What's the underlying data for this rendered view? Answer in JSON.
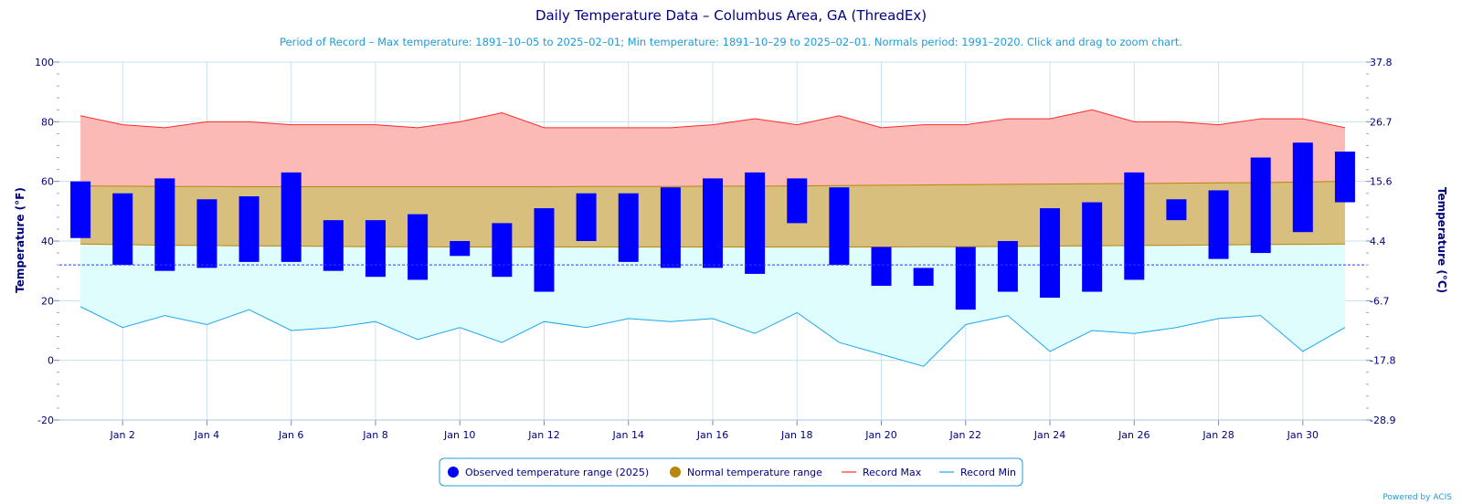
{
  "chart_data": {
    "type": "bar",
    "title": "Daily Temperature Data – Columbus Area, GA (ThreadEx)",
    "subtitle": "Period of Record – Max temperature: 1891–10–05 to 2025–02–01; Min temperature: 1891–10–29 to 2025–02–01. Normals period: 1991–2020. Click and drag to zoom chart.",
    "ylabel": "Temperature (°F)",
    "y2label": "Temperature (°C)",
    "ylim": [
      -20,
      100
    ],
    "y_ticks": [
      -20,
      0,
      20,
      40,
      60,
      80,
      100
    ],
    "y2_ticks": [
      "-28.9",
      "-17.8",
      "-6.7",
      "4.4",
      "15.6",
      "26.7",
      "37.8"
    ],
    "x_tick_labels": [
      "Jan 2",
      "Jan 4",
      "Jan 6",
      "Jan 8",
      "Jan 10",
      "Jan 12",
      "Jan 14",
      "Jan 16",
      "Jan 18",
      "Jan 20",
      "Jan 22",
      "Jan 24",
      "Jan 26",
      "Jan 28",
      "Jan 30"
    ],
    "x_tick_days": [
      2,
      4,
      6,
      8,
      10,
      12,
      14,
      16,
      18,
      20,
      22,
      24,
      26,
      28,
      30
    ],
    "days": [
      1,
      2,
      3,
      4,
      5,
      6,
      7,
      8,
      9,
      10,
      11,
      12,
      13,
      14,
      15,
      16,
      17,
      18,
      19,
      20,
      21,
      22,
      23,
      24,
      25,
      26,
      27,
      28,
      29,
      30,
      31
    ],
    "freezing_line": 32,
    "legend_position": "bottom-center",
    "series": [
      {
        "name": "Observed temperature range (2025)",
        "color": "#0000ff",
        "low": [
          41,
          32,
          30,
          31,
          33,
          33,
          30,
          28,
          27,
          35,
          28,
          23,
          40,
          33,
          31,
          31,
          29,
          46,
          32,
          25,
          25,
          17,
          23,
          21,
          23,
          27,
          47,
          34,
          36,
          43,
          53
        ],
        "high": [
          60,
          56,
          61,
          54,
          55,
          63,
          47,
          47,
          49,
          40,
          46,
          51,
          56,
          56,
          58,
          61,
          63,
          61,
          58,
          38,
          31,
          38,
          40,
          51,
          53,
          63,
          54,
          57,
          68,
          73,
          70
        ]
      },
      {
        "name": "Normal temperature range",
        "color": "#b8860b",
        "low": [
          39,
          38.8,
          38.6,
          38.5,
          38.4,
          38.3,
          38.2,
          38.1,
          38.1,
          38,
          38,
          38,
          38,
          38,
          38,
          38,
          38,
          38,
          38,
          38,
          38.1,
          38.1,
          38.2,
          38.3,
          38.4,
          38.5,
          38.6,
          38.7,
          38.8,
          38.9,
          39
        ],
        "high": [
          58.5,
          58.4,
          58.3,
          58.3,
          58.2,
          58.2,
          58.2,
          58.2,
          58.2,
          58.2,
          58.2,
          58.2,
          58.3,
          58.3,
          58.3,
          58.4,
          58.4,
          58.5,
          58.6,
          58.7,
          58.8,
          58.9,
          59,
          59.1,
          59.2,
          59.3,
          59.4,
          59.5,
          59.6,
          59.8,
          60
        ]
      },
      {
        "name": "Record Max",
        "color": "#ff2a2a",
        "values": [
          82,
          79,
          78,
          80,
          80,
          79,
          79,
          79,
          78,
          80,
          83,
          78,
          78,
          78,
          78,
          79,
          81,
          79,
          82,
          78,
          79,
          79,
          81,
          81,
          84,
          80,
          80,
          79,
          81,
          81,
          78
        ]
      },
      {
        "name": "Record Min",
        "color": "#1ea7f0",
        "values": [
          18,
          11,
          15,
          12,
          17,
          10,
          11,
          13,
          7,
          11,
          6,
          13,
          11,
          14,
          13,
          14,
          9,
          16,
          6,
          2,
          -2,
          12,
          15,
          3,
          10,
          9,
          11,
          14,
          15,
          3,
          11
        ]
      }
    ]
  },
  "credit": "Powered by ACIS"
}
